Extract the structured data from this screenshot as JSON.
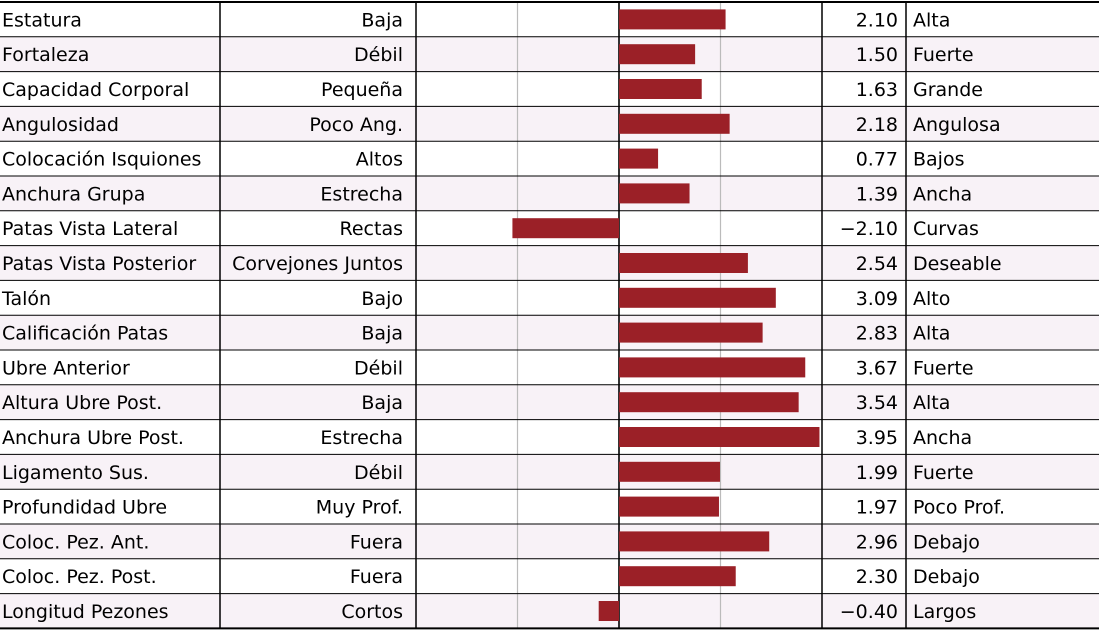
{
  "colors": {
    "bar": "#9b2027",
    "stripe": "#f8f2f7",
    "background": "#ffffff",
    "grid": "#bbbbbb",
    "border": "#000000"
  },
  "chart_data": {
    "type": "bar",
    "orientation": "horizontal",
    "xlim": [
      -4,
      4
    ],
    "gridlines": [
      -2,
      0,
      2
    ],
    "grid": true,
    "title": "",
    "rows": [
      {
        "trait": "Estatura",
        "low": "Baja",
        "value": 2.1,
        "value_label": "2.10",
        "high": "Alta"
      },
      {
        "trait": "Fortaleza",
        "low": "Débil",
        "value": 1.5,
        "value_label": "1.50",
        "high": "Fuerte"
      },
      {
        "trait": "Capacidad Corporal",
        "low": "Pequeña",
        "value": 1.63,
        "value_label": "1.63",
        "high": "Grande"
      },
      {
        "trait": "Angulosidad",
        "low": "Poco Ang.",
        "value": 2.18,
        "value_label": "2.18",
        "high": "Angulosa"
      },
      {
        "trait": "Colocación Isquiones",
        "low": "Altos",
        "value": 0.77,
        "value_label": "0.77",
        "high": "Bajos"
      },
      {
        "trait": "Anchura Grupa",
        "low": "Estrecha",
        "value": 1.39,
        "value_label": "1.39",
        "high": "Ancha"
      },
      {
        "trait": "Patas Vista Lateral",
        "low": "Rectas",
        "value": -2.1,
        "value_label": "−2.10",
        "high": "Curvas"
      },
      {
        "trait": "Patas Vista Posterior",
        "low": "Corvejones Juntos",
        "value": 2.54,
        "value_label": "2.54",
        "high": "Deseable"
      },
      {
        "trait": "Talón",
        "low": "Bajo",
        "value": 3.09,
        "value_label": "3.09",
        "high": "Alto"
      },
      {
        "trait": "Calificación Patas",
        "low": "Baja",
        "value": 2.83,
        "value_label": "2.83",
        "high": "Alta"
      },
      {
        "trait": "Ubre Anterior",
        "low": "Débil",
        "value": 3.67,
        "value_label": "3.67",
        "high": "Fuerte"
      },
      {
        "trait": "Altura Ubre Post.",
        "low": "Baja",
        "value": 3.54,
        "value_label": "3.54",
        "high": "Alta"
      },
      {
        "trait": "Anchura Ubre Post.",
        "low": "Estrecha",
        "value": 3.95,
        "value_label": "3.95",
        "high": "Ancha"
      },
      {
        "trait": "Ligamento Sus.",
        "low": "Débil",
        "value": 1.99,
        "value_label": "1.99",
        "high": "Fuerte"
      },
      {
        "trait": "Profundidad Ubre",
        "low": "Muy Prof.",
        "value": 1.97,
        "value_label": "1.97",
        "high": "Poco Prof."
      },
      {
        "trait": "Coloc. Pez. Ant.",
        "low": "Fuera",
        "value": 2.96,
        "value_label": "2.96",
        "high": "Debajo"
      },
      {
        "trait": "Coloc. Pez. Post.",
        "low": "Fuera",
        "value": 2.3,
        "value_label": "2.30",
        "high": "Debajo"
      },
      {
        "trait": "Longitud Pezones",
        "low": "Cortos",
        "value": -0.4,
        "value_label": "−0.40",
        "high": "Largos"
      }
    ]
  }
}
